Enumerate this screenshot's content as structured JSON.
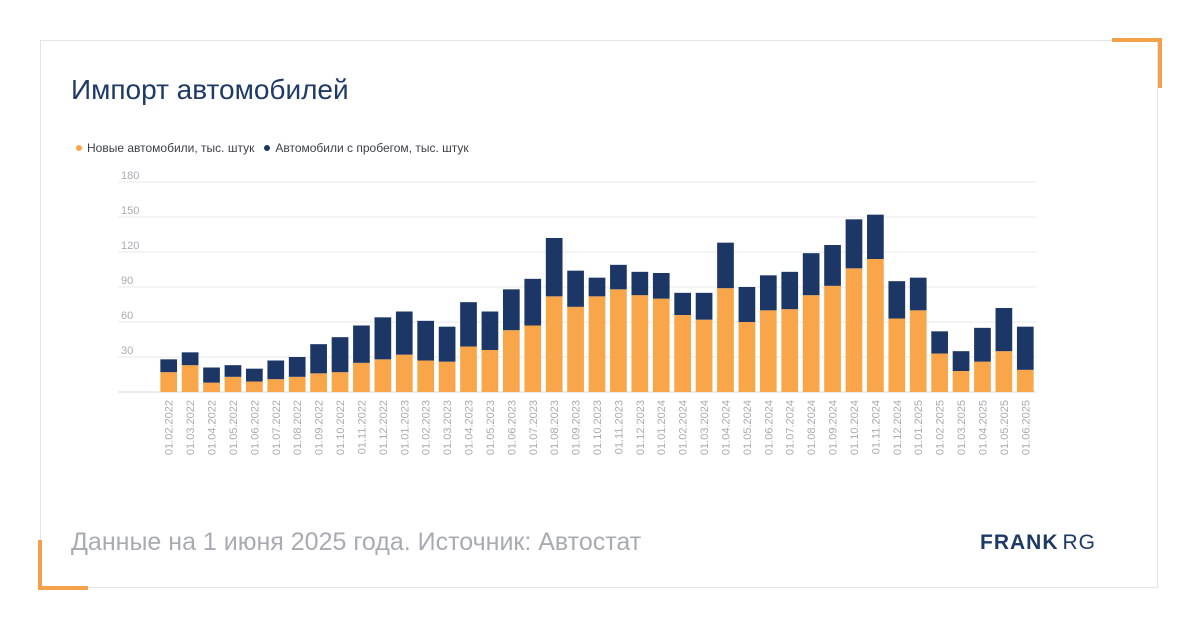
{
  "title": "Импорт автомобилей",
  "footer": "Данные на 1 июня 2025 года. Источник: Автостат",
  "brand": {
    "part1": "FRANK",
    "part2": "RG"
  },
  "colors": {
    "new": "#f9a54a",
    "used": "#1c3766",
    "accent": "#f5a04a"
  },
  "chart_data": {
    "type": "bar",
    "stacked": true,
    "legend_position": "top-left",
    "grid": true,
    "ylim": [
      0,
      180
    ],
    "yticks": [
      30,
      60,
      90,
      120,
      150,
      180
    ],
    "categories": [
      "01.02.2022",
      "01.03.2022",
      "01.04.2022",
      "01.05.2022",
      "01.06.2022",
      "01.07.2022",
      "01.08.2022",
      "01.09.2022",
      "01.10.2022",
      "01.11.2022",
      "01.12.2022",
      "01.01.2023",
      "01.02.2023",
      "01.03.2023",
      "01.04.2023",
      "01.05.2023",
      "01.06.2023",
      "01.07.2023",
      "01.08.2023",
      "01.09.2023",
      "01.10.2023",
      "01.11.2023",
      "01.12.2023",
      "01.01.2024",
      "01.02.2024",
      "01.03.2024",
      "01.04.2024",
      "01.05.2024",
      "01.06.2024",
      "01.07.2024",
      "01.08.2024",
      "01.09.2024",
      "01.10.2024",
      "01.11.2024",
      "01.12.2024",
      "01.01.2025",
      "01.02.2025",
      "01.03.2025",
      "01.04.2025",
      "01.05.2025",
      "01.06.2025"
    ],
    "series": [
      {
        "name": "Новые автомобили, тыс. штук",
        "values": [
          17,
          23,
          8,
          13,
          9,
          11,
          13,
          16,
          17,
          25,
          28,
          32,
          27,
          26,
          39,
          36,
          53,
          57,
          82,
          73,
          82,
          88,
          83,
          80,
          66,
          62,
          89,
          60,
          70,
          71,
          83,
          91,
          106,
          114,
          63,
          70,
          33,
          18,
          26,
          35,
          19
        ]
      },
      {
        "name": "Автомобили с пробегом, тыс. штук",
        "values": [
          11,
          11,
          13,
          10,
          11,
          16,
          17,
          25,
          30,
          32,
          36,
          37,
          34,
          30,
          38,
          33,
          35,
          40,
          50,
          31,
          16,
          21,
          20,
          22,
          19,
          23,
          39,
          30,
          30,
          32,
          36,
          35,
          42,
          38,
          32,
          28,
          19,
          17,
          29,
          37,
          37
        ]
      }
    ]
  }
}
